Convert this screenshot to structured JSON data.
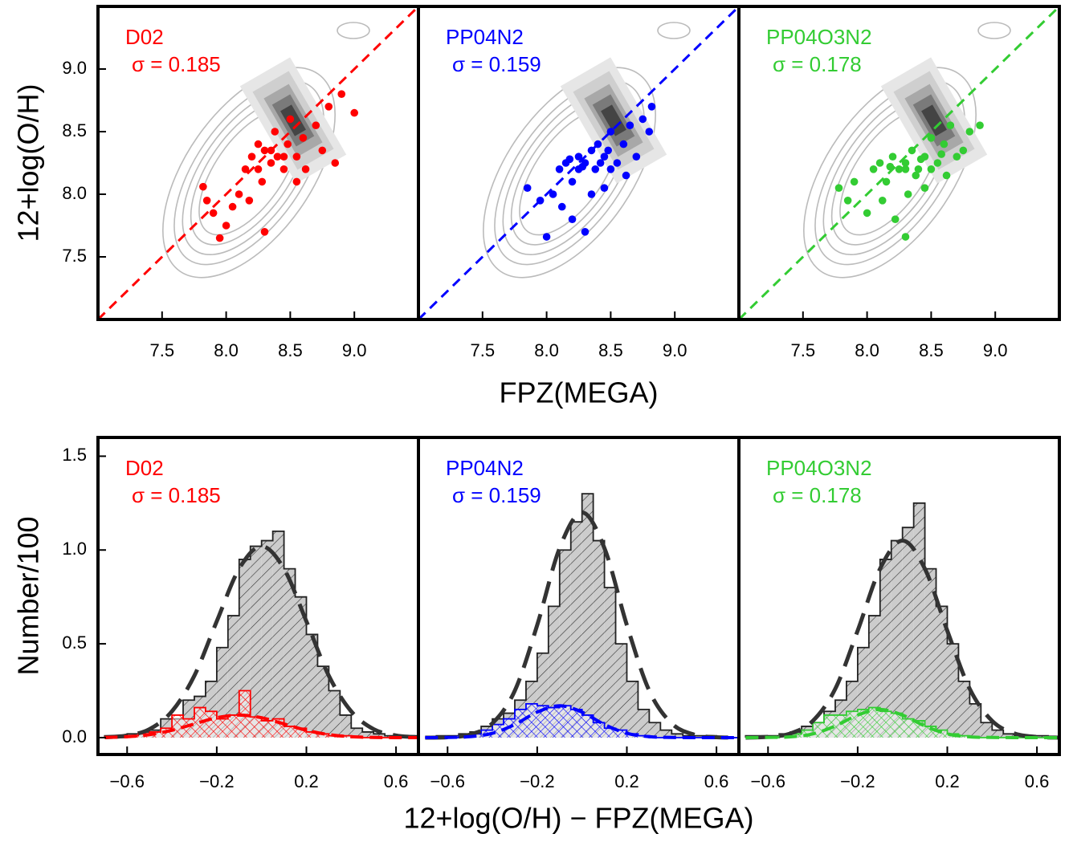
{
  "chart_data": [
    {
      "type": "scatter",
      "label": "D02",
      "sigma": "σ = 0.185",
      "y_label": "12+log(O/H)",
      "color": "#ff0000",
      "xlim": [
        7.0,
        9.5
      ],
      "ylim": [
        7.0,
        9.5
      ],
      "xticks": [
        7.5,
        {
          "value": 8,
          "label": "8.0"
        },
        8.5,
        {
          "value": 9,
          "label": "9.0"
        }
      ],
      "yticks": [
        7.5,
        {
          "value": 8,
          "label": "8.0"
        },
        8.5,
        {
          "value": 9,
          "label": "9.0"
        }
      ],
      "x": [
        7.82,
        7.85,
        7.9,
        7.95,
        8.0,
        8.05,
        8.1,
        8.15,
        8.18,
        8.2,
        8.25,
        8.28,
        8.3,
        8.3,
        8.35,
        8.38,
        8.4,
        8.45,
        8.48,
        8.5,
        8.55,
        8.55,
        8.6,
        8.62,
        8.7,
        8.75,
        8.8,
        8.85,
        8.9,
        9.0,
        8.25,
        8.35,
        8.45
      ],
      "values": [
        8.06,
        7.95,
        7.85,
        7.65,
        7.75,
        7.9,
        8.0,
        8.2,
        7.95,
        8.3,
        8.4,
        8.1,
        8.35,
        7.7,
        8.25,
        8.5,
        8.3,
        8.2,
        8.4,
        8.6,
        8.3,
        8.1,
        8.45,
        8.2,
        8.55,
        8.35,
        8.7,
        8.25,
        8.8,
        8.65,
        8.2,
        8.35,
        8.3
      ]
    },
    {
      "type": "scatter",
      "label": "PP04N2",
      "sigma": "σ = 0.159",
      "x_label": "FPZ(MEGA)",
      "color": "#0000ff",
      "xlim": [
        7.0,
        9.5
      ],
      "ylim": [
        7.0,
        9.5
      ],
      "xticks": [
        7.5,
        {
          "value": 8,
          "label": "8.0"
        },
        8.5,
        {
          "value": 9,
          "label": "9.0"
        }
      ],
      "x": [
        7.85,
        7.95,
        8.0,
        8.05,
        8.1,
        8.12,
        8.15,
        8.2,
        8.2,
        8.25,
        8.25,
        8.3,
        8.3,
        8.35,
        8.38,
        8.4,
        8.42,
        8.45,
        8.45,
        8.5,
        8.5,
        8.55,
        8.6,
        8.62,
        8.65,
        8.7,
        8.75,
        8.8,
        8.82,
        8.35,
        8.28,
        8.18,
        8.48
      ],
      "values": [
        8.05,
        7.95,
        7.66,
        8.0,
        8.2,
        7.9,
        8.25,
        8.1,
        7.8,
        8.3,
        8.2,
        7.7,
        8.25,
        8.35,
        8.2,
        8.4,
        8.25,
        8.05,
        8.3,
        8.5,
        8.2,
        8.25,
        8.4,
        8.15,
        8.55,
        8.3,
        8.6,
        8.5,
        8.7,
        8.0,
        8.22,
        8.28,
        8.35
      ]
    },
    {
      "type": "scatter",
      "label": "PP04O3N2",
      "sigma": "σ = 0.178",
      "color": "#33cc33",
      "xlim": [
        7.0,
        9.5
      ],
      "ylim": [
        7.0,
        9.5
      ],
      "xticks": [
        7.5,
        {
          "value": 8,
          "label": "8.0"
        },
        8.5,
        {
          "value": 9,
          "label": "9.0"
        }
      ],
      "x": [
        7.78,
        7.85,
        7.9,
        8.0,
        8.05,
        8.1,
        8.12,
        8.15,
        8.2,
        8.22,
        8.25,
        8.3,
        8.3,
        8.35,
        8.38,
        8.4,
        8.45,
        8.45,
        8.5,
        8.5,
        8.55,
        8.6,
        8.62,
        8.65,
        8.7,
        8.75,
        8.8,
        8.88,
        8.3,
        8.18,
        8.42,
        8.58,
        8.32
      ],
      "values": [
        8.05,
        7.95,
        8.1,
        7.85,
        8.2,
        8.25,
        7.95,
        8.1,
        8.3,
        7.8,
        8.2,
        7.66,
        8.25,
        8.35,
        8.15,
        8.2,
        8.3,
        8.05,
        8.45,
        8.2,
        8.25,
        8.4,
        8.15,
        8.55,
        8.3,
        8.35,
        8.5,
        8.55,
        8.2,
        8.22,
        8.28,
        8.32,
        8.0
      ]
    },
    {
      "type": "histogram",
      "label": "D02",
      "sigma": "σ = 0.185",
      "y_label": "Number/100",
      "xlim": [
        -0.73,
        0.7
      ],
      "ylim": [
        -0.09,
        1.6
      ],
      "xticks": [
        {
          "value": -0.6,
          "label": "−0.6"
        },
        {
          "value": -0.2,
          "label": "−0.2"
        },
        0.2,
        0.6
      ],
      "yticks": [
        {
          "value": 0,
          "label": "0.0"
        },
        0.5,
        {
          "value": 1,
          "label": "1.0"
        },
        1.5
      ],
      "bins": [
        -0.7,
        -0.65,
        -0.6,
        -0.55,
        -0.5,
        -0.45,
        -0.4,
        -0.35,
        -0.3,
        -0.25,
        -0.2,
        -0.15,
        -0.1,
        -0.05,
        0,
        0.05,
        0.1,
        0.15,
        0.2,
        0.25,
        0.3,
        0.35,
        0.4,
        0.45,
        0.5,
        0.55,
        0.6,
        0.65,
        0.7
      ],
      "series": [
        {
          "color": "#999999",
          "values": [
            0.01,
            0.01,
            0.02,
            0.03,
            0.04,
            0.1,
            0.1,
            0.2,
            0.22,
            0.3,
            0.48,
            0.65,
            0.95,
            1.02,
            1.05,
            1.1,
            0.9,
            0.75,
            0.55,
            0.38,
            0.25,
            0.12,
            0.05,
            0.03,
            0.02,
            0.01,
            0,
            0.01
          ]
        },
        {
          "color": "#ff0000",
          "values": [
            0,
            0,
            0.01,
            0.02,
            0.03,
            0.05,
            0.12,
            0.1,
            0.16,
            0.14,
            0.1,
            0.12,
            0.25,
            0.11,
            0.09,
            0.1,
            0.06,
            0.05,
            0.03,
            0.02,
            0.01,
            0.01,
            0,
            0,
            0,
            0,
            0,
            0
          ]
        }
      ],
      "fit_x": [
        -0.7,
        -0.6,
        -0.5,
        -0.4,
        -0.3,
        -0.2,
        -0.1,
        0,
        0.1,
        0.2,
        0.3,
        0.4,
        0.5,
        0.6,
        0.7
      ],
      "fits": [
        {
          "color": "#333333",
          "values": [
            0.002,
            0.011,
            0.045,
            0.14,
            0.33,
            0.62,
            0.9,
            1.02,
            0.9,
            0.62,
            0.33,
            0.14,
            0.045,
            0.011,
            0.002
          ]
        },
        {
          "color": "#ff0000",
          "values": [
            0.001,
            0.005,
            0.016,
            0.039,
            0.073,
            0.106,
            0.12,
            0.106,
            0.073,
            0.039,
            0.016,
            0.005,
            0.001,
            0,
            0
          ]
        }
      ]
    },
    {
      "type": "histogram",
      "label": "PP04N2",
      "sigma": "σ = 0.159",
      "x_label": "12+log(O/H) − FPZ(MEGA)",
      "xlim": [
        -0.73,
        0.7
      ],
      "ylim": [
        -0.09,
        1.6
      ],
      "xticks": [
        {
          "value": -0.6,
          "label": "−0.6"
        },
        {
          "value": -0.2,
          "label": "−0.2"
        },
        0.2,
        0.6
      ],
      "bins": [
        -0.7,
        -0.65,
        -0.6,
        -0.55,
        -0.5,
        -0.45,
        -0.4,
        -0.35,
        -0.3,
        -0.25,
        -0.2,
        -0.15,
        -0.1,
        -0.05,
        0,
        0.05,
        0.1,
        0.15,
        0.2,
        0.25,
        0.3,
        0.35,
        0.4,
        0.45,
        0.5,
        0.55,
        0.6,
        0.65,
        0.7
      ],
      "series": [
        {
          "color": "#999999",
          "values": [
            0,
            0.01,
            0.01,
            0.02,
            0.03,
            0.06,
            0.1,
            0.13,
            0.2,
            0.3,
            0.45,
            0.7,
            1.0,
            1.15,
            1.3,
            1.05,
            0.8,
            0.5,
            0.3,
            0.15,
            0.08,
            0.04,
            0.02,
            0.01,
            0.01,
            0.01,
            0,
            0
          ]
        },
        {
          "color": "#0000ff",
          "values": [
            0,
            0,
            0,
            0.01,
            0.02,
            0.04,
            0.07,
            0.1,
            0.15,
            0.18,
            0.17,
            0.16,
            0.17,
            0.15,
            0.12,
            0.08,
            0.05,
            0.04,
            0.02,
            0.01,
            0,
            0,
            0,
            0,
            0,
            0,
            0,
            0
          ]
        }
      ],
      "fit_x": [
        -0.7,
        -0.6,
        -0.5,
        -0.4,
        -0.3,
        -0.2,
        -0.1,
        0,
        0.1,
        0.2,
        0.3,
        0.4,
        0.5,
        0.6,
        0.7
      ],
      "fits": [
        {
          "color": "#333333",
          "values": [
            0,
            0.002,
            0.016,
            0.076,
            0.25,
            0.6,
            1.01,
            1.2,
            1.01,
            0.6,
            0.25,
            0.076,
            0.016,
            0.002,
            0
          ]
        },
        {
          "color": "#0000ff",
          "values": [
            0,
            0.001,
            0.005,
            0.023,
            0.07,
            0.136,
            0.17,
            0.136,
            0.07,
            0.023,
            0.005,
            0.001,
            0,
            0,
            0
          ]
        }
      ]
    },
    {
      "type": "histogram",
      "label": "PP04O3N2",
      "sigma": "σ = 0.178",
      "xlim": [
        -0.73,
        0.7
      ],
      "ylim": [
        -0.09,
        1.6
      ],
      "xticks": [
        {
          "value": -0.6,
          "label": "−0.6"
        },
        {
          "value": -0.2,
          "label": "−0.2"
        },
        0.2,
        0.6
      ],
      "bins": [
        -0.7,
        -0.65,
        -0.6,
        -0.55,
        -0.5,
        -0.45,
        -0.4,
        -0.35,
        -0.3,
        -0.25,
        -0.2,
        -0.15,
        -0.1,
        -0.05,
        0,
        0.05,
        0.1,
        0.15,
        0.2,
        0.25,
        0.3,
        0.35,
        0.4,
        0.45,
        0.5,
        0.55,
        0.6,
        0.65,
        0.7
      ],
      "series": [
        {
          "color": "#999999",
          "values": [
            0.01,
            0.01,
            0.01,
            0.02,
            0.03,
            0.06,
            0.08,
            0.14,
            0.2,
            0.3,
            0.48,
            0.65,
            0.95,
            1.05,
            1.12,
            1.25,
            0.9,
            0.7,
            0.5,
            0.3,
            0.18,
            0.08,
            0.04,
            0.02,
            0.01,
            0.01,
            0.01,
            0
          ]
        },
        {
          "color": "#33cc33",
          "values": [
            0,
            0,
            0,
            0.01,
            0.02,
            0.04,
            0.08,
            0.12,
            0.12,
            0.14,
            0.15,
            0.16,
            0.14,
            0.13,
            0.1,
            0.09,
            0.06,
            0.04,
            0.02,
            0.01,
            0,
            0,
            0,
            0,
            0,
            0,
            0,
            0
          ]
        }
      ],
      "fit_x": [
        -0.7,
        -0.6,
        -0.5,
        -0.4,
        -0.3,
        -0.2,
        -0.1,
        0,
        0.1,
        0.2,
        0.3,
        0.4,
        0.5,
        0.6,
        0.7
      ],
      "fits": [
        {
          "color": "#333333",
          "values": [
            0,
            0.004,
            0.022,
            0.089,
            0.26,
            0.57,
            0.9,
            1.05,
            0.9,
            0.57,
            0.26,
            0.089,
            0.022,
            0.004,
            0
          ]
        },
        {
          "color": "#33cc33",
          "values": [
            0,
            0.001,
            0.004,
            0.02,
            0.062,
            0.12,
            0.15,
            0.12,
            0.062,
            0.02,
            0.004,
            0.001,
            0,
            0,
            0
          ]
        }
      ]
    }
  ]
}
